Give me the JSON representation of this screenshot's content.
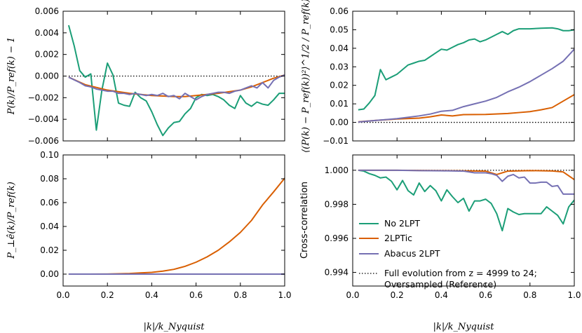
{
  "colors": {
    "no2lpt": "#1b9e77",
    "lptic": "#d95f02",
    "abacus": "#7570b3",
    "reference": "#000000"
  },
  "legend": {
    "placement": "lower-left of bottom-right panel",
    "entries": [
      {
        "key": "no2lpt",
        "label": "No 2LPT"
      },
      {
        "key": "lptic",
        "label": "2LPTic"
      },
      {
        "key": "abacus",
        "label": "Abacus 2LPT"
      }
    ],
    "reference_line1": "Full evolution from z = 4999 to 24;",
    "reference_line2": "Oversampled (Reference)"
  },
  "chart_data": [
    {
      "id": "top-left",
      "type": "line",
      "ylabel": "P(k)/P_ref(k) − 1",
      "xlabel": "",
      "xlim": [
        0,
        1
      ],
      "ylim": [
        -0.006,
        0.006
      ],
      "xticks": [
        0,
        0.2,
        0.4,
        0.6,
        0.8,
        1.0
      ],
      "xtick_labels": [
        "",
        "",
        "",
        "",
        "",
        ""
      ],
      "yticks": [
        -0.006,
        -0.004,
        -0.002,
        0,
        0.002,
        0.004,
        0.006
      ],
      "ytick_labels": [
        "−0.006",
        "−0.004",
        "−0.002",
        "0.000",
        "0.002",
        "0.004",
        "0.006"
      ],
      "grid": false,
      "reference": 0,
      "series": [
        {
          "key": "no2lpt",
          "name": "No 2LPT",
          "x": [
            0.025,
            0.05,
            0.075,
            0.1,
            0.125,
            0.15,
            0.175,
            0.2,
            0.225,
            0.25,
            0.275,
            0.3,
            0.325,
            0.35,
            0.375,
            0.4,
            0.425,
            0.45,
            0.475,
            0.5,
            0.525,
            0.55,
            0.575,
            0.6,
            0.625,
            0.65,
            0.675,
            0.7,
            0.725,
            0.75,
            0.775,
            0.8,
            0.825,
            0.85,
            0.875,
            0.9,
            0.925,
            0.95,
            0.975,
            1.0
          ],
          "y": [
            0.0047,
            0.0028,
            0.0005,
            -0.0001,
            0.0002,
            -0.005,
            -0.0013,
            0.0012,
            0.0001,
            -0.0025,
            -0.0027,
            -0.0028,
            -0.0015,
            -0.002,
            -0.0023,
            -0.0033,
            -0.0045,
            -0.0055,
            -0.0048,
            -0.0043,
            -0.0042,
            -0.0035,
            -0.003,
            -0.002,
            -0.0017,
            -0.0018,
            -0.0017,
            -0.0019,
            -0.0022,
            -0.0027,
            -0.003,
            -0.0018,
            -0.0025,
            -0.0028,
            -0.0024,
            -0.0026,
            -0.0027,
            -0.0022,
            -0.0016,
            -0.0016
          ]
        },
        {
          "key": "lptic",
          "name": "2LPTic",
          "x": [
            0.025,
            0.1,
            0.2,
            0.3,
            0.4,
            0.5,
            0.55,
            0.6,
            0.7,
            0.8,
            0.85,
            0.9,
            0.95,
            1.0
          ],
          "y": [
            -0.0001,
            -0.0008,
            -0.0013,
            -0.0016,
            -0.0018,
            -0.0019,
            -0.0019,
            -0.0018,
            -0.0016,
            -0.0013,
            -0.001,
            -0.0006,
            -0.0002,
            0.0001
          ]
        },
        {
          "key": "abacus",
          "name": "Abacus 2LPT",
          "x": [
            0.025,
            0.075,
            0.1,
            0.125,
            0.15,
            0.175,
            0.2,
            0.225,
            0.25,
            0.275,
            0.3,
            0.325,
            0.35,
            0.375,
            0.4,
            0.425,
            0.45,
            0.475,
            0.5,
            0.525,
            0.55,
            0.575,
            0.6,
            0.625,
            0.65,
            0.675,
            0.7,
            0.725,
            0.75,
            0.775,
            0.8,
            0.825,
            0.85,
            0.875,
            0.9,
            0.925,
            0.95,
            0.975,
            1.0
          ],
          "y": [
            -0.0001,
            -0.0006,
            -0.0009,
            -0.001,
            -0.0012,
            -0.0013,
            -0.0014,
            -0.0014,
            -0.0016,
            -0.0016,
            -0.0017,
            -0.0016,
            -0.0017,
            -0.0018,
            -0.0017,
            -0.0018,
            -0.0016,
            -0.0019,
            -0.0018,
            -0.0021,
            -0.0016,
            -0.0019,
            -0.0022,
            -0.0019,
            -0.0017,
            -0.0016,
            -0.0015,
            -0.0015,
            -0.0016,
            -0.0014,
            -0.0013,
            -0.0011,
            -0.0009,
            -0.0011,
            -0.0006,
            -0.0011,
            -0.0004,
            -0.0001,
            0.0001
          ]
        }
      ]
    },
    {
      "id": "top-right",
      "type": "line",
      "ylabel": "⟨(P(k) − P_ref(k))²⟩^1/2 / P_ref(k)",
      "xlabel": "",
      "xlim": [
        0,
        1
      ],
      "ylim": [
        -0.01,
        0.06
      ],
      "xticks": [
        0,
        0.2,
        0.4,
        0.6,
        0.8,
        1.0
      ],
      "xtick_labels": [
        "",
        "",
        "",
        "",
        "",
        ""
      ],
      "yticks": [
        -0.01,
        0,
        0.01,
        0.02,
        0.03,
        0.04,
        0.05,
        0.06
      ],
      "ytick_labels": [
        "−0.01",
        "0.00",
        "0.01",
        "0.02",
        "0.03",
        "0.04",
        "0.05",
        "0.06"
      ],
      "grid": false,
      "reference": 0,
      "series": [
        {
          "key": "no2lpt",
          "name": "No 2LPT",
          "x": [
            0.025,
            0.05,
            0.075,
            0.1,
            0.125,
            0.15,
            0.175,
            0.2,
            0.225,
            0.25,
            0.275,
            0.3,
            0.325,
            0.35,
            0.375,
            0.4,
            0.425,
            0.45,
            0.475,
            0.5,
            0.525,
            0.55,
            0.575,
            0.6,
            0.625,
            0.65,
            0.675,
            0.7,
            0.725,
            0.75,
            0.775,
            0.8,
            0.85,
            0.9,
            0.925,
            0.95,
            0.975,
            1.0
          ],
          "y": [
            0.0068,
            0.0072,
            0.0105,
            0.0145,
            0.0285,
            0.023,
            0.0245,
            0.026,
            0.0285,
            0.031,
            0.032,
            0.033,
            0.0335,
            0.0355,
            0.0375,
            0.0395,
            0.039,
            0.0405,
            0.042,
            0.043,
            0.0445,
            0.045,
            0.0435,
            0.0445,
            0.046,
            0.0475,
            0.049,
            0.0475,
            0.0495,
            0.0505,
            0.0505,
            0.0505,
            0.0508,
            0.051,
            0.0505,
            0.0495,
            0.0495,
            0.05
          ]
        },
        {
          "key": "lptic",
          "name": "2LPTic",
          "x": [
            0.025,
            0.1,
            0.2,
            0.3,
            0.35,
            0.4,
            0.45,
            0.5,
            0.6,
            0.7,
            0.75,
            0.8,
            0.85,
            0.9,
            0.95,
            1.0
          ],
          "y": [
            0.0003,
            0.001,
            0.0018,
            0.0023,
            0.003,
            0.004,
            0.0035,
            0.0042,
            0.0043,
            0.0048,
            0.0053,
            0.0058,
            0.0068,
            0.008,
            0.0115,
            0.015
          ]
        },
        {
          "key": "abacus",
          "name": "Abacus 2LPT",
          "x": [
            0.025,
            0.1,
            0.15,
            0.2,
            0.3,
            0.35,
            0.4,
            0.45,
            0.5,
            0.55,
            0.6,
            0.65,
            0.7,
            0.75,
            0.8,
            0.85,
            0.9,
            0.95,
            1.0
          ],
          "y": [
            0.0002,
            0.001,
            0.0015,
            0.002,
            0.0035,
            0.0045,
            0.006,
            0.0065,
            0.0085,
            0.01,
            0.0115,
            0.0135,
            0.0165,
            0.019,
            0.022,
            0.0255,
            0.029,
            0.033,
            0.0395
          ]
        }
      ]
    },
    {
      "id": "bottom-left",
      "type": "line",
      "ylabel": "P_⊥ê(k)/P_ref(k)",
      "xlabel": "|k|/k_Nyquist",
      "xlim": [
        0,
        1
      ],
      "ylim": [
        -0.01,
        0.1
      ],
      "xticks": [
        0,
        0.2,
        0.4,
        0.6,
        0.8,
        1.0
      ],
      "xtick_labels": [
        "0.0",
        "0.2",
        "0.4",
        "0.6",
        "0.8",
        "1.0"
      ],
      "yticks": [
        0,
        0.02,
        0.04,
        0.06,
        0.08,
        0.1
      ],
      "ytick_labels": [
        "0.00",
        "0.02",
        "0.04",
        "0.06",
        "0.08",
        "0.10"
      ],
      "grid": false,
      "reference": 0,
      "series": [
        {
          "key": "no2lpt",
          "name": "No 2LPT",
          "x": [
            0.025,
            1.0
          ],
          "y": [
            0,
            0
          ]
        },
        {
          "key": "lptic",
          "name": "2LPTic",
          "x": [
            0.025,
            0.1,
            0.2,
            0.3,
            0.35,
            0.4,
            0.45,
            0.5,
            0.55,
            0.6,
            0.65,
            0.7,
            0.75,
            0.8,
            0.85,
            0.9,
            0.95,
            1.0
          ],
          "y": [
            0,
            0,
            0.0001,
            0.0005,
            0.001,
            0.0015,
            0.0025,
            0.004,
            0.0065,
            0.01,
            0.0145,
            0.02,
            0.027,
            0.035,
            0.045,
            0.058,
            0.069,
            0.0805
          ]
        },
        {
          "key": "abacus",
          "name": "Abacus 2LPT",
          "x": [
            0.025,
            1.0
          ],
          "y": [
            0,
            0
          ]
        }
      ]
    },
    {
      "id": "bottom-right",
      "type": "line",
      "ylabel": "Cross-correlation",
      "xlabel": "|k|/k_Nyquist",
      "xlim": [
        0,
        1
      ],
      "ylim": [
        0.9932,
        1.0009
      ],
      "xticks": [
        0,
        0.2,
        0.4,
        0.6,
        0.8,
        1.0
      ],
      "xtick_labels": [
        "0.0",
        "0.2",
        "0.4",
        "0.6",
        "0.8",
        "1.0"
      ],
      "yticks": [
        0.994,
        0.996,
        0.998,
        1.0
      ],
      "ytick_labels": [
        "0.994",
        "0.996",
        "0.998",
        "1.000"
      ],
      "grid": false,
      "reference": 1.0,
      "series": [
        {
          "key": "no2lpt",
          "name": "No 2LPT",
          "x": [
            0.025,
            0.05,
            0.075,
            0.1,
            0.125,
            0.15,
            0.175,
            0.2,
            0.225,
            0.25,
            0.275,
            0.3,
            0.325,
            0.35,
            0.375,
            0.4,
            0.425,
            0.45,
            0.475,
            0.5,
            0.525,
            0.55,
            0.575,
            0.6,
            0.625,
            0.65,
            0.675,
            0.7,
            0.725,
            0.75,
            0.775,
            0.8,
            0.825,
            0.85,
            0.875,
            0.9,
            0.925,
            0.95,
            0.975,
            1.0
          ],
          "y": [
            1.0,
            0.99995,
            0.9998,
            0.9997,
            0.99955,
            0.9996,
            0.99935,
            0.99885,
            0.9994,
            0.9988,
            0.99855,
            0.99925,
            0.99875,
            0.9991,
            0.9988,
            0.9982,
            0.99885,
            0.99845,
            0.9981,
            0.99835,
            0.9976,
            0.9982,
            0.9982,
            0.9983,
            0.99805,
            0.99745,
            0.99645,
            0.99775,
            0.99755,
            0.9974,
            0.99745,
            0.99745,
            0.99745,
            0.99745,
            0.99785,
            0.9976,
            0.99735,
            0.99685,
            0.99785,
            0.99825
          ]
        },
        {
          "key": "lptic",
          "name": "2LPTic",
          "x": [
            0.025,
            0.2,
            0.4,
            0.6,
            0.65,
            0.7,
            0.8,
            0.9,
            0.95,
            1.0
          ],
          "y": [
            1.0,
            1.0,
            0.99998,
            0.99995,
            0.99975,
            0.99995,
            0.99998,
            0.99996,
            0.9999,
            0.99945
          ]
        },
        {
          "key": "abacus",
          "name": "Abacus 2LPT",
          "x": [
            0.025,
            0.2,
            0.3,
            0.4,
            0.5,
            0.55,
            0.6,
            0.625,
            0.65,
            0.675,
            0.7,
            0.725,
            0.75,
            0.775,
            0.8,
            0.825,
            0.85,
            0.875,
            0.9,
            0.925,
            0.95,
            0.975,
            1.0
          ],
          "y": [
            1.0,
            1.0,
            0.99998,
            0.99997,
            0.99995,
            0.99985,
            0.99985,
            0.9998,
            0.9997,
            0.99935,
            0.99965,
            0.99975,
            0.99955,
            0.9996,
            0.99925,
            0.99925,
            0.9993,
            0.9993,
            0.99905,
            0.9991,
            0.9986,
            0.9986,
            0.9986
          ]
        }
      ]
    }
  ]
}
